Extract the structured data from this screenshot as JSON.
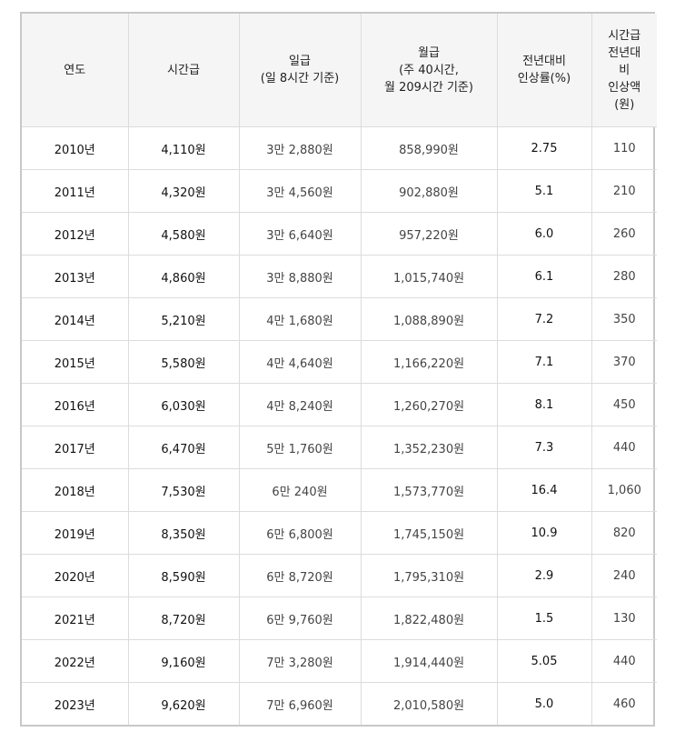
{
  "headers": [
    "연도",
    "시간급",
    "일급\n(일 8시간 기준)",
    "월급\n(주 40시간,\n월 209시간 기준)",
    "전년대비\n인상률(%)",
    "시간급\n전년대\n비\n인상액\n(원)"
  ],
  "rows": [
    [
      "2010년",
      "4,110원",
      "3만 2,880원",
      "858,990원",
      "2.75",
      "110"
    ],
    [
      "2011년",
      "4,320원",
      "3만 4,560원",
      "902,880원",
      "5.1",
      "210"
    ],
    [
      "2012년",
      "4,580원",
      "3만 6,640원",
      "957,220원",
      "6.0",
      "260"
    ],
    [
      "2013년",
      "4,860원",
      "3만 8,880원",
      "1,015,740원",
      "6.1",
      "280"
    ],
    [
      "2014년",
      "5,210원",
      "4만 1,680원",
      "1,088,890원",
      "7.2",
      "350"
    ],
    [
      "2015년",
      "5,580원",
      "4만 4,640원",
      "1,166,220원",
      "7.1",
      "370"
    ],
    [
      "2016년",
      "6,030원",
      "4만 8,240원",
      "1,260,270원",
      "8.1",
      "450"
    ],
    [
      "2017년",
      "6,470원",
      "5만 1,760원",
      "1,352,230원",
      "7.3",
      "440"
    ],
    [
      "2018년",
      "7,530원",
      "6만 240원",
      "1,573,770원",
      "16.4",
      "1,060"
    ],
    [
      "2019년",
      "8,350원",
      "6만 6,800원",
      "1,745,150원",
      "10.9",
      "820"
    ],
    [
      "2020년",
      "8,590원",
      "6만 8,720원",
      "1,795,310원",
      "2.9",
      "240"
    ],
    [
      "2021년",
      "8,720원",
      "6만 9,760원",
      "1,822,480원",
      "1.5",
      "130"
    ],
    [
      "2022년",
      "9,160원",
      "7만 3,280원",
      "1,914,440원",
      "5.05",
      "440"
    ],
    [
      "2023년",
      "9,620원",
      "7만 6,960원",
      "2,010,580원",
      "5.0",
      "460"
    ]
  ]
}
